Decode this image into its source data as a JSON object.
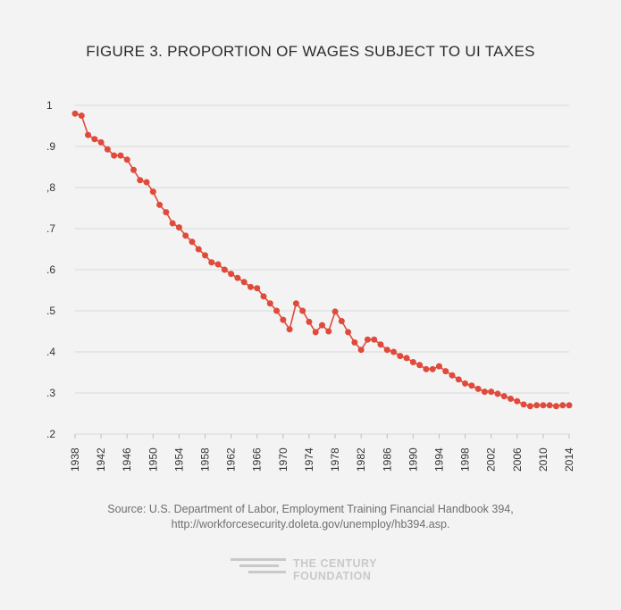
{
  "title": "FIGURE 3. PROPORTION OF WAGES SUBJECT TO UI TAXES",
  "source": {
    "line1": "Source: U.S. Department of Labor, Employment Training Financial Handbook 394,",
    "line2": "http://workforcesecurity.doleta.gov/unemploy/hb394.asp."
  },
  "logo": {
    "line1": "THE CENTURY",
    "line2": "FOUNDATION",
    "icon": "century-foundation-logo-icon"
  },
  "colors": {
    "series": "#e04a3b",
    "grid": "#d9d9d9",
    "background": "#f3f3f3"
  },
  "chart_data": {
    "type": "line",
    "title": "FIGURE 3. PROPORTION OF WAGES SUBJECT TO UI TAXES",
    "xlabel": "",
    "ylabel": "",
    "ylim": [
      0.2,
      1.0
    ],
    "xlim": [
      1938,
      2014
    ],
    "grid": true,
    "y_ticks": [
      {
        "value": 1.0,
        "label": "1"
      },
      {
        "value": 0.9,
        "label": ".9"
      },
      {
        "value": 0.8,
        "label": ",8"
      },
      {
        "value": 0.7,
        "label": ".7"
      },
      {
        "value": 0.6,
        "label": ".6"
      },
      {
        "value": 0.5,
        "label": ".5"
      },
      {
        "value": 0.4,
        "label": ".4"
      },
      {
        "value": 0.3,
        "label": ".3"
      },
      {
        "value": 0.2,
        "label": ".2"
      }
    ],
    "x_ticks": [
      1938,
      1942,
      1946,
      1950,
      1954,
      1958,
      1962,
      1966,
      1970,
      1974,
      1978,
      1982,
      1986,
      1990,
      1994,
      1998,
      2002,
      2006,
      2010,
      2014
    ],
    "series": [
      {
        "name": "Proportion of wages subject to UI taxes",
        "x": [
          1938,
          1939,
          1940,
          1941,
          1942,
          1943,
          1944,
          1945,
          1946,
          1947,
          1948,
          1949,
          1950,
          1951,
          1952,
          1953,
          1954,
          1955,
          1956,
          1957,
          1958,
          1959,
          1960,
          1961,
          1962,
          1963,
          1964,
          1965,
          1966,
          1967,
          1968,
          1969,
          1970,
          1971,
          1972,
          1973,
          1974,
          1975,
          1976,
          1977,
          1978,
          1979,
          1980,
          1981,
          1982,
          1983,
          1984,
          1985,
          1986,
          1987,
          1988,
          1989,
          1990,
          1991,
          1992,
          1993,
          1994,
          1995,
          1996,
          1997,
          1998,
          1999,
          2000,
          2001,
          2002,
          2003,
          2004,
          2005,
          2006,
          2007,
          2008,
          2009,
          2010,
          2011,
          2012,
          2013,
          2014
        ],
        "values": [
          0.98,
          0.975,
          0.928,
          0.918,
          0.91,
          0.893,
          0.878,
          0.878,
          0.868,
          0.843,
          0.818,
          0.813,
          0.79,
          0.758,
          0.74,
          0.713,
          0.703,
          0.683,
          0.668,
          0.65,
          0.635,
          0.618,
          0.613,
          0.6,
          0.59,
          0.58,
          0.57,
          0.558,
          0.555,
          0.535,
          0.518,
          0.5,
          0.478,
          0.455,
          0.518,
          0.5,
          0.473,
          0.448,
          0.465,
          0.45,
          0.498,
          0.475,
          0.448,
          0.423,
          0.405,
          0.43,
          0.43,
          0.418,
          0.405,
          0.4,
          0.39,
          0.385,
          0.375,
          0.368,
          0.358,
          0.358,
          0.365,
          0.353,
          0.343,
          0.333,
          0.323,
          0.318,
          0.31,
          0.303,
          0.303,
          0.298,
          0.292,
          0.286,
          0.28,
          0.272,
          0.268,
          0.27,
          0.27,
          0.27,
          0.268,
          0.27,
          0.27
        ]
      }
    ]
  }
}
